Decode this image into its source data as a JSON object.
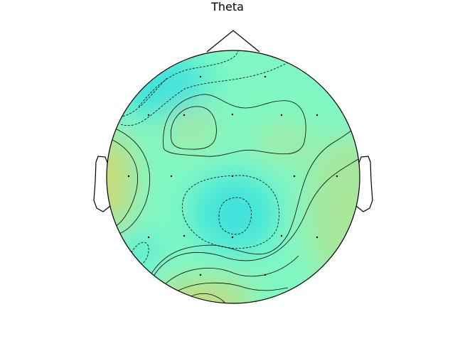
{
  "figure": {
    "title": "Theta"
  },
  "colors": {
    "low": "#40e3dc",
    "mid": "#7ff8c4",
    "high": "#ccd97a",
    "outline": "#000000",
    "sensor": "#000000"
  }
}
